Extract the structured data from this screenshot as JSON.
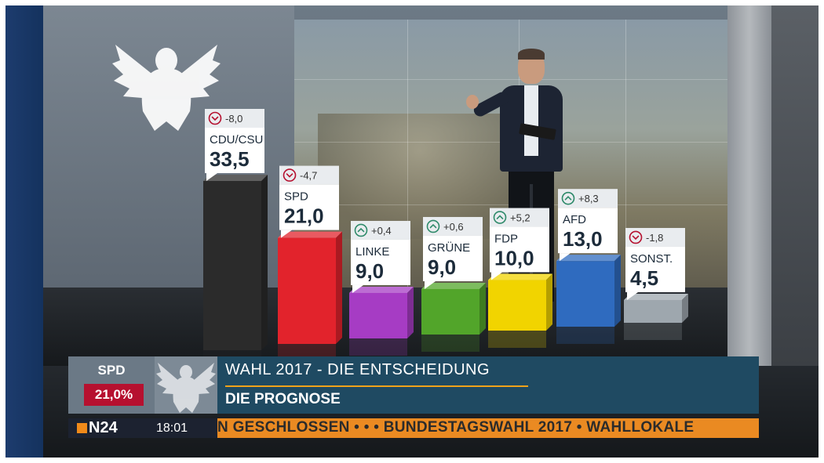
{
  "chart_data": {
    "type": "bar",
    "title": "",
    "xlabel": "",
    "ylabel": "",
    "ylim": [
      0,
      36
    ],
    "grid": false,
    "categories": [
      "CDU/CSU",
      "SPD",
      "LINKE",
      "GRÜNE",
      "FDP",
      "AFD",
      "SONST."
    ],
    "values": [
      33.5,
      21.0,
      9.0,
      9.0,
      10.0,
      13.0,
      4.5
    ],
    "value_labels": [
      "33,5",
      "21,0",
      "9,0",
      "9,0",
      "10,0",
      "13,0",
      "4,5"
    ],
    "change_labels": [
      "-8,0",
      "-4,7",
      "+0,4",
      "+0,6",
      "+5,2",
      "+8,3",
      "-1,8"
    ],
    "change_values": [
      -8.0,
      -4.7,
      0.4,
      0.6,
      5.2,
      8.3,
      -1.8
    ],
    "colors": [
      "#2b2b2b",
      "#e2232c",
      "#a63cc4",
      "#52a52a",
      "#f1d400",
      "#2f6bbf",
      "#9ea7ae"
    ],
    "change_colors": {
      "down": "#b6102f",
      "up": "#2e8a6a"
    }
  },
  "lower_third": {
    "party": "SPD",
    "percent": "21,0%",
    "title": "WAHL 2017 - DIE ENTSCHEIDUNG",
    "subtitle": "DIE PROGNOSE",
    "channel": "N24",
    "time": "18:01",
    "ticker": "N GESCHLOSSEN • • • BUNDESTAGSWAHL 2017 • WAHLLOKALE"
  },
  "icons": {
    "eagle": "federal-eagle-icon",
    "change_down": "chevron-down-circle-icon",
    "change_up": "chevron-up-circle-icon"
  }
}
